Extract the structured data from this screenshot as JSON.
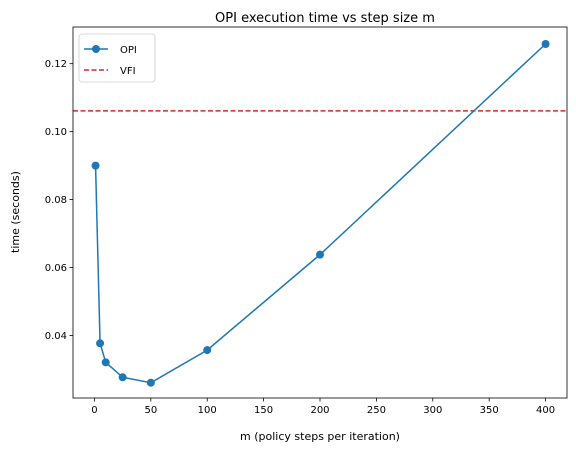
{
  "chart_data": {
    "type": "line",
    "title": "OPI execution time vs step size m",
    "xlabel": "m (policy steps per iteration)",
    "ylabel": "time (seconds)",
    "xlim": [
      -19,
      419
    ],
    "ylim": [
      0.0216,
      0.1308
    ],
    "xticks": [
      0,
      50,
      100,
      150,
      200,
      250,
      300,
      350,
      400
    ],
    "yticks": [
      0.04,
      0.06,
      0.08,
      0.1,
      0.12
    ],
    "ytick_labels": [
      "0.04",
      "0.06",
      "0.08",
      "0.10",
      "0.12"
    ],
    "grid": false,
    "legend_position": "top-left",
    "series": [
      {
        "name": "OPI",
        "style": "line-with-markers",
        "color": "#1f77b4",
        "x": [
          1,
          5,
          10,
          25,
          50,
          100,
          200,
          400
        ],
        "y": [
          0.09,
          0.0377,
          0.0321,
          0.0277,
          0.0261,
          0.0357,
          0.0638,
          0.1258
        ]
      },
      {
        "name": "VFI",
        "style": "dashed-horizontal",
        "color": "#d62728",
        "y": 0.1061
      }
    ]
  }
}
